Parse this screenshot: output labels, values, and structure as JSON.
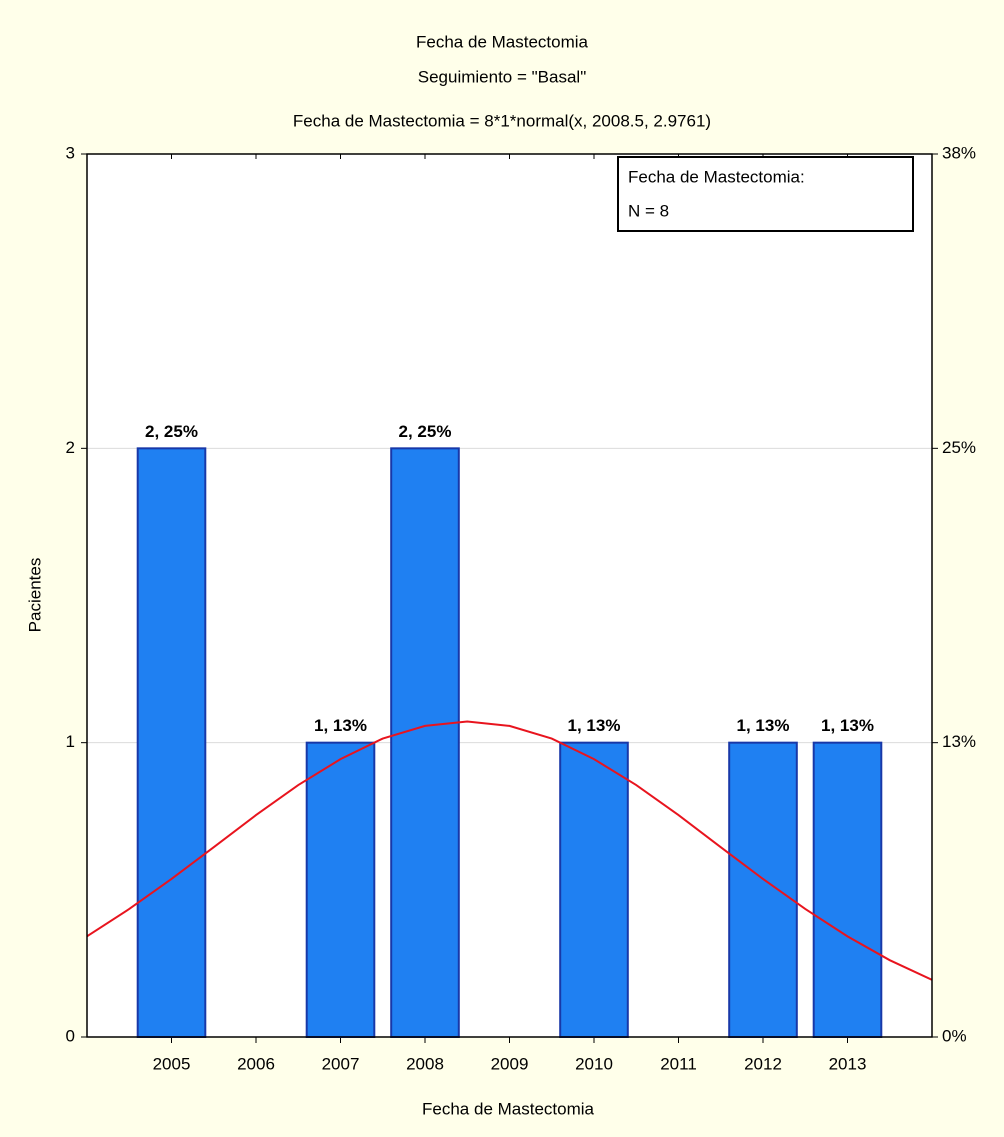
{
  "chart_data": {
    "type": "bar",
    "title": "Fecha de Mastectomia",
    "subtitle": "Seguimiento = \"Basal\"",
    "formula": "Fecha de Mastectomia = 8*1*normal(x, 2008.5, 2.9761)",
    "x_label": "Fecha de Mastectomia",
    "y_label": "Pacientes",
    "categories": [
      "2005",
      "2006",
      "2007",
      "2008",
      "2009",
      "2010",
      "2011",
      "2012",
      "2013"
    ],
    "values": [
      2,
      0,
      1,
      2,
      0,
      1,
      0,
      1,
      1
    ],
    "value_labels": [
      "2, 25%",
      null,
      "1, 13%",
      "2, 25%",
      null,
      "1, 13%",
      null,
      "1, 13%",
      "1, 13%"
    ],
    "color": "#1f80f2",
    "ylim": [
      0,
      3
    ],
    "yticks": [
      0,
      1,
      2,
      3
    ],
    "y2lim": [
      0,
      37.5
    ],
    "y2ticks": [
      {
        "value": 0,
        "label": "0%"
      },
      {
        "value": 12.5,
        "label": "13%"
      },
      {
        "value": 25,
        "label": "25%"
      },
      {
        "value": 37.5,
        "label": "38%"
      }
    ],
    "grid": true,
    "fit": {
      "color": "#e8141e",
      "x": [
        2004,
        2004.5,
        2005,
        2005.5,
        2006,
        2006.5,
        2007,
        2007.5,
        2008,
        2008.5,
        2009,
        2009.5,
        2010,
        2010.5,
        2011,
        2011.5,
        2012,
        2012.5,
        2013,
        2013.5,
        2014
      ],
      "values": [
        0.342,
        0.435,
        0.537,
        0.645,
        0.754,
        0.856,
        0.944,
        1.014,
        1.057,
        1.072,
        1.057,
        1.014,
        0.944,
        0.856,
        0.754,
        0.645,
        0.537,
        0.435,
        0.342,
        0.261,
        0.194
      ],
      "xlim": [
        2004,
        2014
      ]
    },
    "stats_box": [
      "Fecha de Mastectomia:",
      "N = 8"
    ]
  }
}
